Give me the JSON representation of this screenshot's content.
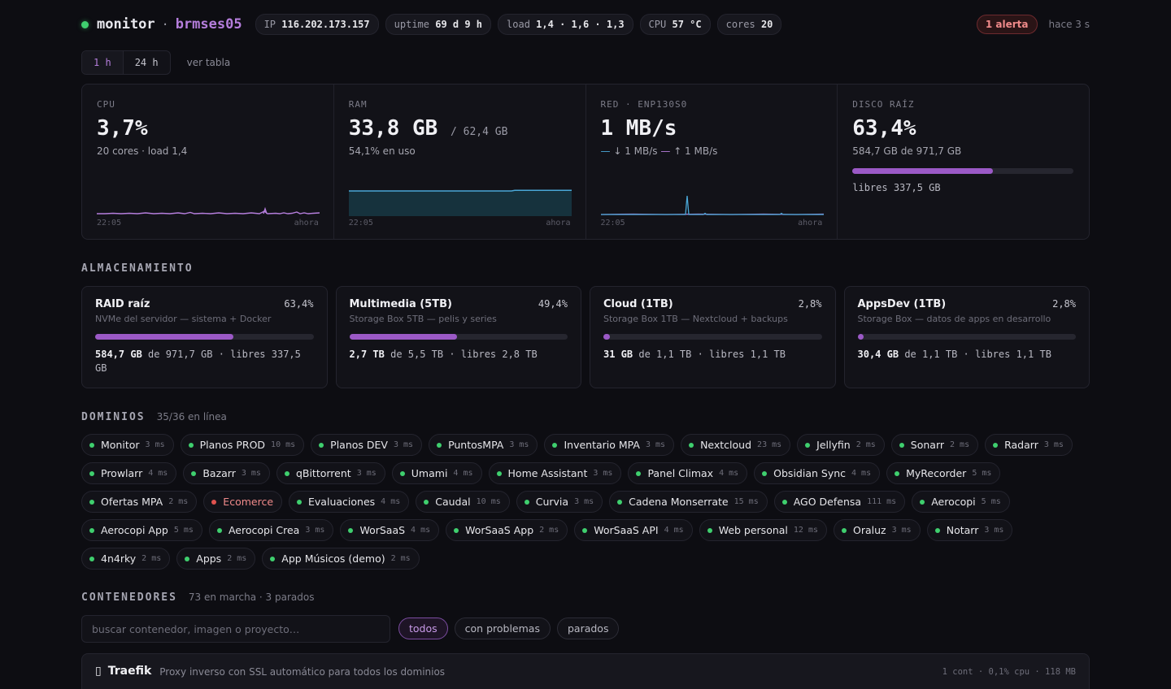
{
  "header": {
    "brand": "monitor",
    "separator": "·",
    "host": "brmses05",
    "pills": [
      {
        "label": "IP",
        "value": "116.202.173.157"
      },
      {
        "label": "uptime",
        "value": "69 d 9 h"
      },
      {
        "label": "load",
        "value": "1,4 · 1,6 · 1,3"
      },
      {
        "label": "CPU",
        "value": "57 °C"
      },
      {
        "label": "cores",
        "value": "20"
      }
    ],
    "alert": "1 alerta",
    "updated": "hace 3 s"
  },
  "range": {
    "options": [
      "1 h",
      "24 h"
    ],
    "selected": "1 h",
    "view_table": "ver tabla"
  },
  "metrics": {
    "cpu": {
      "label": "CPU",
      "value": "3,7%",
      "sub": "20 cores · load 1,4",
      "axis_start": "22:05",
      "axis_end": "ahora",
      "color": "#b57edc"
    },
    "ram": {
      "label": "RAM",
      "value": "33,8 GB",
      "total": "/ 62,4 GB",
      "sub": "54,1% en uso",
      "axis_start": "22:05",
      "axis_end": "ahora",
      "color": "#4aa8d8"
    },
    "net": {
      "label": "RED · ENP130S0",
      "value": "1 MB/s",
      "down": "↓ 1 MB/s",
      "up": "↑ 1 MB/s",
      "axis_start": "22:05",
      "axis_end": "ahora"
    },
    "disk": {
      "label": "DISCO RAÍZ",
      "value": "63,4%",
      "sub": "584,7 GB de 971,7 GB",
      "percent": 63.4,
      "free": "libres 337,5 GB"
    }
  },
  "storage": {
    "title": "ALMACENAMIENTO",
    "cards": [
      {
        "name": "RAID raíz",
        "pct": "63,4%",
        "percent": 63.4,
        "desc": "NVMe del servidor — sistema + Docker",
        "used": "584,7 GB",
        "rest": "de 971,7 GB · libres 337,5 GB"
      },
      {
        "name": "Multimedia (5TB)",
        "pct": "49,4%",
        "percent": 49.4,
        "desc": "Storage Box 5TB — pelis y series",
        "used": "2,7 TB",
        "rest": "de 5,5 TB · libres 2,8 TB"
      },
      {
        "name": "Cloud (1TB)",
        "pct": "2,8%",
        "percent": 2.8,
        "desc": "Storage Box 1TB — Nextcloud + backups",
        "used": "31 GB",
        "rest": "de 1,1 TB · libres 1,1 TB"
      },
      {
        "name": "AppsDev (1TB)",
        "pct": "2,8%",
        "percent": 2.8,
        "desc": "Storage Box — datos de apps en desarrollo",
        "used": "30,4 GB",
        "rest": "de 1,1 TB · libres 1,1 TB"
      }
    ]
  },
  "domains": {
    "title": "DOMINIOS",
    "count": "35/36 en línea",
    "items": [
      {
        "name": "Monitor",
        "ms": "3 ms",
        "up": true
      },
      {
        "name": "Planos PROD",
        "ms": "10 ms",
        "up": true
      },
      {
        "name": "Planos DEV",
        "ms": "3 ms",
        "up": true
      },
      {
        "name": "PuntosMPA",
        "ms": "3 ms",
        "up": true
      },
      {
        "name": "Inventario MPA",
        "ms": "3 ms",
        "up": true
      },
      {
        "name": "Nextcloud",
        "ms": "23 ms",
        "up": true
      },
      {
        "name": "Jellyfin",
        "ms": "2 ms",
        "up": true
      },
      {
        "name": "Sonarr",
        "ms": "2 ms",
        "up": true
      },
      {
        "name": "Radarr",
        "ms": "3 ms",
        "up": true
      },
      {
        "name": "Prowlarr",
        "ms": "4 ms",
        "up": true
      },
      {
        "name": "Bazarr",
        "ms": "3 ms",
        "up": true
      },
      {
        "name": "qBittorrent",
        "ms": "3 ms",
        "up": true
      },
      {
        "name": "Umami",
        "ms": "4 ms",
        "up": true
      },
      {
        "name": "Home Assistant",
        "ms": "3 ms",
        "up": true
      },
      {
        "name": "Panel Climax",
        "ms": "4 ms",
        "up": true
      },
      {
        "name": "Obsidian Sync",
        "ms": "4 ms",
        "up": true
      },
      {
        "name": "MyRecorder",
        "ms": "5 ms",
        "up": true
      },
      {
        "name": "Ofertas MPA",
        "ms": "2 ms",
        "up": true
      },
      {
        "name": "Ecomerce",
        "ms": "",
        "up": false
      },
      {
        "name": "Evaluaciones",
        "ms": "4 ms",
        "up": true
      },
      {
        "name": "Caudal",
        "ms": "10 ms",
        "up": true
      },
      {
        "name": "Curvia",
        "ms": "3 ms",
        "up": true
      },
      {
        "name": "Cadena Monserrate",
        "ms": "15 ms",
        "up": true
      },
      {
        "name": "AGO Defensa",
        "ms": "111 ms",
        "up": true
      },
      {
        "name": "Aerocopi",
        "ms": "5 ms",
        "up": true
      },
      {
        "name": "Aerocopi App",
        "ms": "5 ms",
        "up": true
      },
      {
        "name": "Aerocopi Crea",
        "ms": "3 ms",
        "up": true
      },
      {
        "name": "WorSaaS",
        "ms": "4 ms",
        "up": true
      },
      {
        "name": "WorSaaS App",
        "ms": "2 ms",
        "up": true
      },
      {
        "name": "WorSaaS API",
        "ms": "4 ms",
        "up": true
      },
      {
        "name": "Web personal",
        "ms": "12 ms",
        "up": true
      },
      {
        "name": "Oraluz",
        "ms": "3 ms",
        "up": true
      },
      {
        "name": "Notarr",
        "ms": "3 ms",
        "up": true
      },
      {
        "name": "4n4rky",
        "ms": "2 ms",
        "up": true
      },
      {
        "name": "Apps",
        "ms": "2 ms",
        "up": true
      },
      {
        "name": "App Músicos (demo)",
        "ms": "2 ms",
        "up": true
      }
    ]
  },
  "containers": {
    "title": "CONTENEDORES",
    "count": "73 en marcha · 3 parados",
    "search_placeholder": "buscar contenedor, imagen o proyecto…",
    "filters": [
      "todos",
      "con problemas",
      "parados"
    ],
    "selected_filter": "todos",
    "rows": [
      {
        "icon": "▯",
        "name": "Traefik",
        "desc": "Proxy inverso con SSL automático para todos los dominios",
        "stats": "1 cont · 0,1% cpu · 118 MB"
      }
    ]
  }
}
